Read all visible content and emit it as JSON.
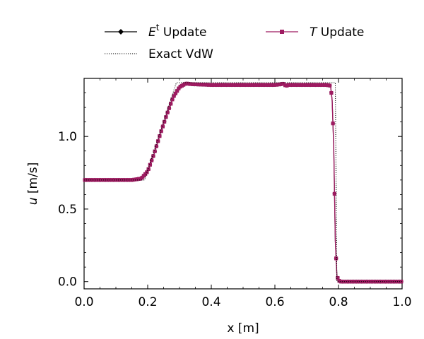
{
  "chart_data": {
    "type": "line",
    "xlabel": "x [m]",
    "ylabel_var": "u",
    "ylabel_unit": " [m/s]",
    "xlim": [
      0.0,
      1.0
    ],
    "ylim": [
      -0.05,
      1.4
    ],
    "x_ticks": [
      "0.0",
      "0.2",
      "0.4",
      "0.6",
      "0.8",
      "1.0"
    ],
    "x_tick_values": [
      0.0,
      0.2,
      0.4,
      0.6,
      0.8,
      1.0
    ],
    "y_ticks": [
      "0.0",
      "0.5",
      "1.0"
    ],
    "y_tick_values": [
      0.0,
      0.5,
      1.0
    ],
    "grid": false,
    "legend_placement": "top, outside plot",
    "legend": [
      {
        "id": "et",
        "base": "E",
        "sup": "t",
        "rest": " Update",
        "style": "black line with diamond markers"
      },
      {
        "id": "t",
        "base": "T",
        "sup": "",
        "rest": " Update",
        "style": "magenta line with square markers"
      },
      {
        "id": "exact",
        "base": "",
        "sup": "",
        "rest": "Exact VdW",
        "style": "black dotted line"
      }
    ],
    "series": [
      {
        "id": "et",
        "color": "#000000",
        "x": [
          0.0,
          0.15,
          0.18,
          0.2,
          0.22,
          0.24,
          0.26,
          0.28,
          0.3,
          0.32,
          0.34,
          0.4,
          0.6,
          0.62,
          0.625,
          0.63,
          0.635,
          0.64,
          0.65,
          0.7,
          0.76,
          0.775,
          0.78,
          0.785,
          0.79,
          0.795,
          0.8,
          0.805,
          0.81,
          1.0
        ],
        "y": [
          0.7,
          0.7,
          0.71,
          0.76,
          0.88,
          1.02,
          1.15,
          1.27,
          1.34,
          1.365,
          1.36,
          1.355,
          1.355,
          1.36,
          1.365,
          1.36,
          1.345,
          1.355,
          1.355,
          1.355,
          1.355,
          1.35,
          1.25,
          0.93,
          0.28,
          0.04,
          0.01,
          0.0,
          0.0,
          0.0
        ]
      },
      {
        "id": "t",
        "color": "#9e1b61",
        "x": [
          0.0,
          0.15,
          0.18,
          0.2,
          0.22,
          0.24,
          0.26,
          0.28,
          0.3,
          0.32,
          0.34,
          0.4,
          0.6,
          0.62,
          0.625,
          0.63,
          0.635,
          0.64,
          0.65,
          0.7,
          0.76,
          0.775,
          0.78,
          0.785,
          0.79,
          0.795,
          0.8,
          0.805,
          0.81,
          1.0
        ],
        "y": [
          0.7,
          0.7,
          0.71,
          0.76,
          0.88,
          1.02,
          1.15,
          1.27,
          1.34,
          1.365,
          1.36,
          1.355,
          1.355,
          1.36,
          1.365,
          1.36,
          1.345,
          1.355,
          1.355,
          1.355,
          1.355,
          1.35,
          1.25,
          0.93,
          0.28,
          0.04,
          0.01,
          0.0,
          0.0,
          0.0
        ]
      },
      {
        "id": "exact",
        "color": "#000000",
        "x": [
          0.0,
          0.19,
          0.29,
          0.79,
          0.795,
          1.0
        ],
        "y": [
          0.7,
          0.7,
          1.37,
          1.37,
          0.0,
          0.0
        ]
      }
    ]
  }
}
